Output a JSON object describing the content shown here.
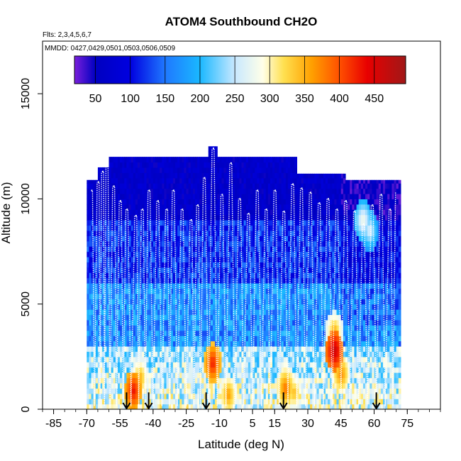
{
  "chart_data": {
    "type": "heatmap",
    "title": "ATOM4 Southbound CH2O",
    "subtitle_flights": "Flts: 2,3,4,5,6,7",
    "subtitle_dates": "MMDD: 0427,0429,0501,0503,0506,0509",
    "xlabel": "Latitude (deg N)",
    "ylabel": "Altitude (m)",
    "xlim": [
      -90,
      90
    ],
    "ylim": [
      0,
      17500
    ],
    "x_ticks": [
      -85,
      -70,
      -55,
      -40,
      -25,
      -10,
      5,
      15,
      30,
      45,
      60,
      75
    ],
    "x_tick_labels": [
      "-85",
      "-70",
      "-55",
      "-40",
      "-25",
      "-10",
      "5",
      "15",
      "30",
      "45",
      "60",
      "75"
    ],
    "x_minor_step": 5,
    "y_ticks": [
      0,
      5000,
      10000,
      15000
    ],
    "y_tick_labels": [
      "0",
      "5000",
      "10000",
      "15000"
    ],
    "colorbar": {
      "min": 20,
      "max": 495,
      "ticks": [
        50,
        100,
        150,
        200,
        250,
        300,
        350,
        400,
        450
      ],
      "tick_labels": [
        "50",
        "100",
        "150",
        "200",
        "250",
        "300",
        "350",
        "400",
        "450"
      ],
      "stops": [
        [
          20,
          "#7a1fdc"
        ],
        [
          50,
          "#0000c0"
        ],
        [
          100,
          "#0000e0"
        ],
        [
          150,
          "#1f78ff"
        ],
        [
          200,
          "#1ab8ff"
        ],
        [
          250,
          "#c8e8ff"
        ],
        [
          290,
          "#ffffe8"
        ],
        [
          320,
          "#ffe050"
        ],
        [
          360,
          "#ffa000"
        ],
        [
          400,
          "#ff5000"
        ],
        [
          440,
          "#e80000"
        ],
        [
          495,
          "#a01818"
        ]
      ]
    },
    "profile_columns": [
      {
        "lat": -68,
        "top": 10400
      },
      {
        "lat": -65,
        "top": 10800
      },
      {
        "lat": -63,
        "top": 11300
      },
      {
        "lat": -61,
        "top": 11600
      },
      {
        "lat": -58,
        "top": 10600
      },
      {
        "lat": -55,
        "top": 9900
      },
      {
        "lat": -52,
        "top": 9500
      },
      {
        "lat": -48,
        "top": 9200
      },
      {
        "lat": -45,
        "top": 9500
      },
      {
        "lat": -42,
        "top": 10400
      },
      {
        "lat": -38,
        "top": 9900
      },
      {
        "lat": -34,
        "top": 9500
      },
      {
        "lat": -31,
        "top": 10400
      },
      {
        "lat": -27,
        "top": 9500
      },
      {
        "lat": -23,
        "top": 9000
      },
      {
        "lat": -20,
        "top": 9700
      },
      {
        "lat": -17,
        "top": 11000
      },
      {
        "lat": -13,
        "top": 12400
      },
      {
        "lat": -9,
        "top": 10200
      },
      {
        "lat": -5,
        "top": 11700
      },
      {
        "lat": -1,
        "top": 10000
      },
      {
        "lat": 3,
        "top": 9300
      },
      {
        "lat": 7,
        "top": 10400
      },
      {
        "lat": 11,
        "top": 9500
      },
      {
        "lat": 15,
        "top": 10400
      },
      {
        "lat": 19,
        "top": 9400
      },
      {
        "lat": 23,
        "top": 10700
      },
      {
        "lat": 27,
        "top": 10500
      },
      {
        "lat": 31,
        "top": 10300
      },
      {
        "lat": 35,
        "top": 9800
      },
      {
        "lat": 39,
        "top": 10000
      },
      {
        "lat": 43,
        "top": 9500
      },
      {
        "lat": 47,
        "top": 9900
      },
      {
        "lat": 51,
        "top": 9400
      },
      {
        "lat": 55,
        "top": 8800
      },
      {
        "lat": 59,
        "top": 9700
      },
      {
        "lat": 63,
        "top": 10200
      },
      {
        "lat": 67,
        "top": 9500
      },
      {
        "lat": 70,
        "top": 10300
      }
    ],
    "curtain_top_steps": [
      {
        "lat_from": -70,
        "lat_to": -65,
        "top": 10900
      },
      {
        "lat_from": -65,
        "lat_to": -60,
        "top": 11500
      },
      {
        "lat_from": -60,
        "lat_to": -53,
        "top": 12000
      },
      {
        "lat_from": -53,
        "lat_to": -15,
        "top": 12000
      },
      {
        "lat_from": -15,
        "lat_to": -11,
        "top": 12500
      },
      {
        "lat_from": -11,
        "lat_to": 25,
        "top": 12000
      },
      {
        "lat_from": 25,
        "lat_to": 47,
        "top": 11200
      },
      {
        "lat_from": 47,
        "lat_to": 72,
        "top": 10900
      }
    ],
    "hotspots": [
      {
        "lat": -49,
        "alt": 900,
        "value": 440
      },
      {
        "lat": -46,
        "alt": 1500,
        "value": 360
      },
      {
        "lat": -13,
        "alt": 2200,
        "value": 430
      },
      {
        "lat": -6,
        "alt": 700,
        "value": 370
      },
      {
        "lat": 20,
        "alt": 1000,
        "value": 390
      },
      {
        "lat": 24,
        "alt": 800,
        "value": 350
      },
      {
        "lat": 42,
        "alt": 2800,
        "value": 470
      },
      {
        "lat": 42,
        "alt": 3700,
        "value": 360
      },
      {
        "lat": 45,
        "alt": 1700,
        "value": 380
      },
      {
        "lat": 55,
        "alt": 9000,
        "value": 290
      },
      {
        "lat": 58,
        "alt": 8500,
        "value": 270
      }
    ],
    "arrows_lat": [
      -52,
      -42,
      -16,
      19,
      61
    ],
    "arrow_top_alt": 600
  }
}
